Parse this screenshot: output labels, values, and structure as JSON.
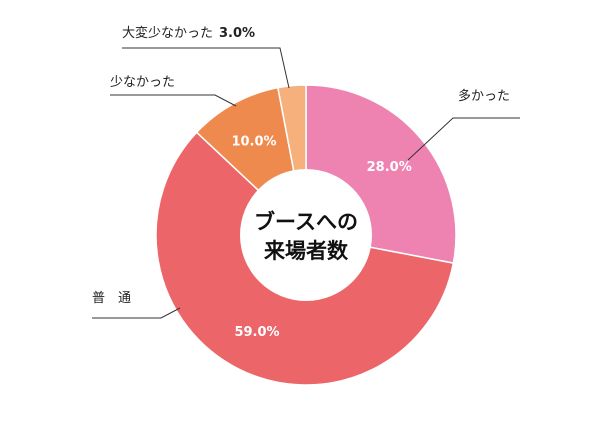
{
  "chart_data": {
    "type": "pie",
    "donut": true,
    "center_label": [
      "ブースへの",
      "来場者数"
    ],
    "start": "top",
    "direction": "clockwise",
    "slices": [
      {
        "label": "多かった",
        "value": 28.0,
        "display": "28.0%",
        "color": "#ee82b0",
        "value_inside": true
      },
      {
        "label": "普　通",
        "value": 59.0,
        "display": "59.0%",
        "color": "#ec6669",
        "value_inside": true
      },
      {
        "label": "少なかった",
        "value": 10.0,
        "display": "10.0%",
        "color": "#ef8a4f",
        "value_inside": true
      },
      {
        "label": "大変少なかった",
        "value": 3.0,
        "display": "3.0%",
        "color": "#f5b07c",
        "value_inside": false
      }
    ]
  }
}
